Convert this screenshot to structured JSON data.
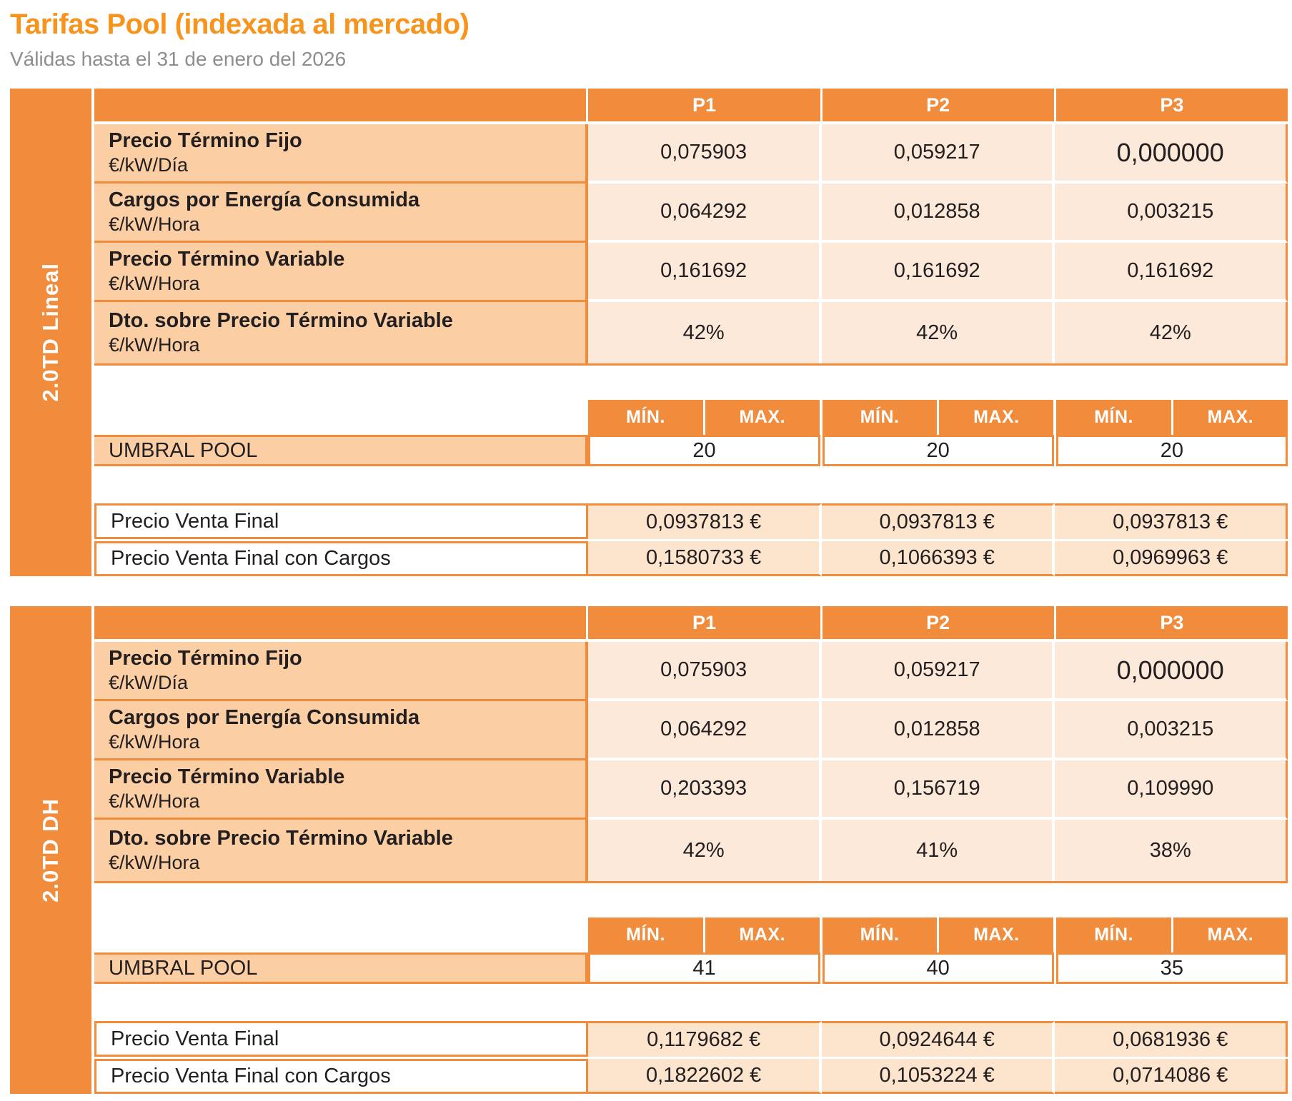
{
  "header": {
    "title": "Tarifas Pool (indexada al mercado)",
    "subtitle": "Válidas hasta el 31 de enero del 2026"
  },
  "column_headers": [
    "P1",
    "P2",
    "P3"
  ],
  "minmax_headers": [
    "MÍN.",
    "MAX."
  ],
  "tables": [
    {
      "section_label": "2.0TD Lineal",
      "rows": [
        {
          "label": "Precio Término Fijo",
          "unit": "€/kW/Día",
          "values": [
            "0,075903",
            "0,059217",
            "0,000000"
          ]
        },
        {
          "label": "Cargos por Energía Consumida",
          "unit": "€/kW/Hora",
          "values": [
            "0,064292",
            "0,012858",
            "0,003215"
          ]
        },
        {
          "label": "Precio Término Variable",
          "unit": "€/kW/Hora",
          "values": [
            "0,161692",
            "0,161692",
            "0,161692"
          ]
        },
        {
          "label": "Dto. sobre Precio Término Variable",
          "unit": "€/kW/Hora",
          "values": [
            "42%",
            "42%",
            "42%"
          ]
        }
      ],
      "umbral": {
        "label": "UMBRAL POOL",
        "values": [
          "20",
          "20",
          "20"
        ]
      },
      "final_rows": [
        {
          "label": "Precio Venta Final",
          "values": [
            "0,0937813 €",
            "0,0937813 €",
            "0,0937813 €"
          ]
        },
        {
          "label": "Precio Venta Final con Cargos",
          "values": [
            "0,1580733 €",
            "0,1066393 €",
            "0,0969963 €"
          ]
        }
      ]
    },
    {
      "section_label": "2.0TD DH",
      "rows": [
        {
          "label": "Precio Término Fijo",
          "unit": "€/kW/Día",
          "values": [
            "0,075903",
            "0,059217",
            "0,000000"
          ]
        },
        {
          "label": "Cargos por Energía Consumida",
          "unit": "€/kW/Hora",
          "values": [
            "0,064292",
            "0,012858",
            "0,003215"
          ]
        },
        {
          "label": "Precio Término Variable",
          "unit": "€/kW/Hora",
          "values": [
            "0,203393",
            "0,156719",
            "0,109990"
          ]
        },
        {
          "label": "Dto. sobre Precio Término Variable",
          "unit": "€/kW/Hora",
          "values": [
            "42%",
            "41%",
            "38%"
          ]
        }
      ],
      "umbral": {
        "label": "UMBRAL POOL",
        "values": [
          "41",
          "40",
          "35"
        ]
      },
      "final_rows": [
        {
          "label": "Precio Venta Final",
          "values": [
            "0,1179682 €",
            "0,0924644 €",
            "0,0681936 €"
          ]
        },
        {
          "label": "Precio Venta Final con Cargos",
          "values": [
            "0,1822602 €",
            "0,1053224 €",
            "0,0714086 €"
          ]
        }
      ]
    }
  ],
  "colors": {
    "accent_orange": "#F28C3D",
    "title_orange": "#F7941D",
    "label_cell": "#FBCFA3",
    "value_cell": "#FDE9D9",
    "final_value_cell": "#FCE4CD",
    "subtitle_gray": "#8E8E90"
  }
}
